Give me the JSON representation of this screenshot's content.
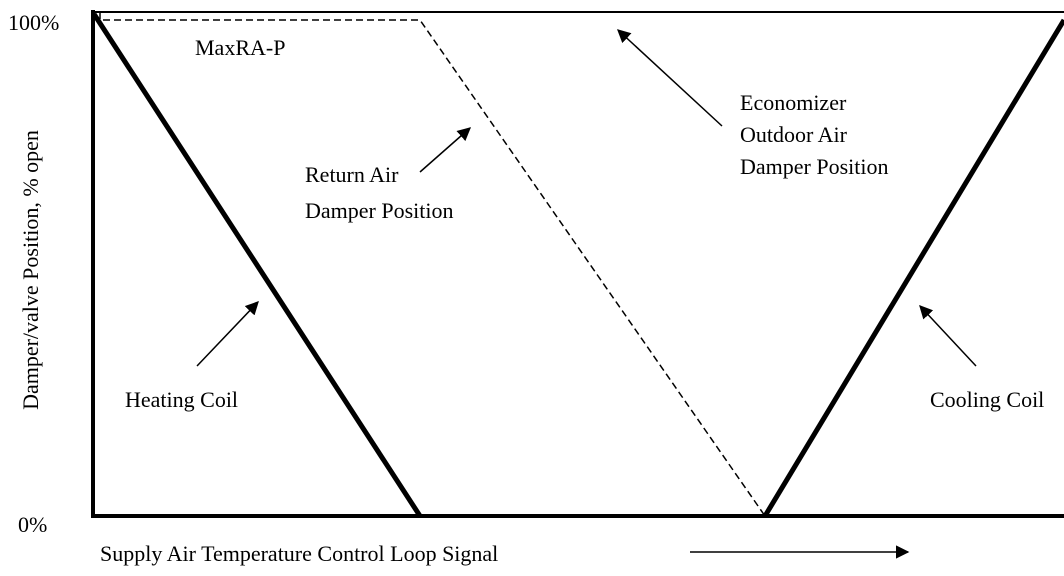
{
  "axis": {
    "y_label": "Damper/valve Position, % open",
    "y_top": "100%",
    "y_bottom": "0%",
    "x_label": "Supply Air Temperature Control Loop Signal"
  },
  "labels": {
    "max_ra": "MaxRA-P",
    "return_air": [
      "Return Air",
      "Damper Position"
    ],
    "economizer": [
      "Economizer",
      "Outdoor Air",
      "Damper Position"
    ],
    "heating": "Heating Coil",
    "cooling": "Cooling Coil"
  }
}
